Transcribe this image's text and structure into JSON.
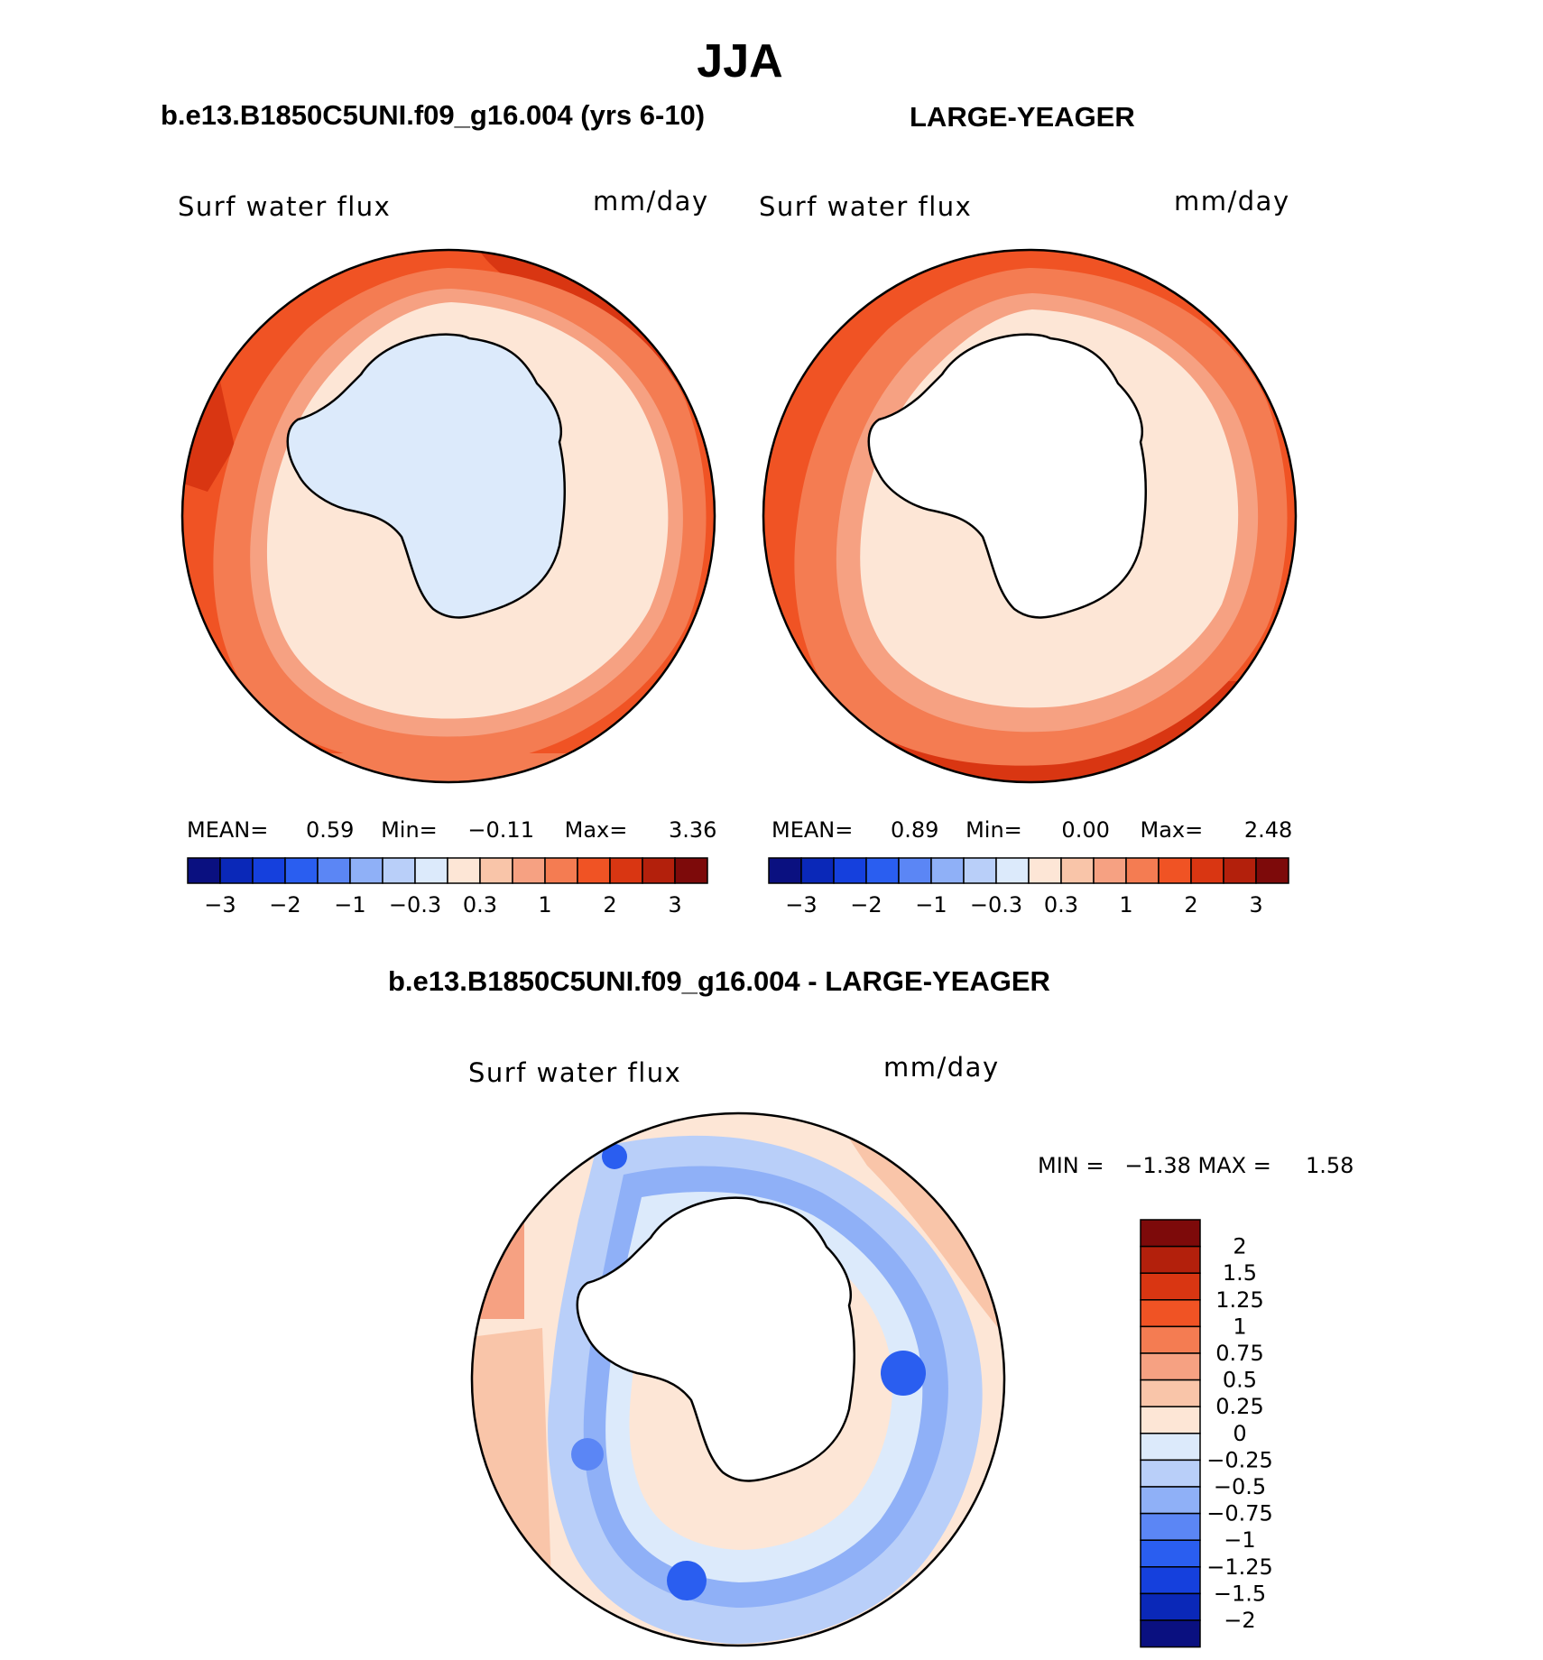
{
  "page_title": "JJA",
  "panels": [
    {
      "id": "case1",
      "header": "b.e13.B1850C5UNI.f09_g16.004 (yrs 6-10)",
      "label": "Surf water flux",
      "units": "mm/day",
      "stats": {
        "mean_label": "MEAN=",
        "mean": "0.59",
        "min_label": "Min=",
        "min": "−0.11",
        "max_label": "Max=",
        "max": "3.36"
      }
    },
    {
      "id": "case2",
      "header": "LARGE-YEAGER",
      "label": "Surf water flux",
      "units": "mm/day",
      "stats": {
        "mean_label": "MEAN=",
        "mean": "0.89",
        "min_label": "Min=",
        "min": "0.00",
        "max_label": "Max=",
        "max": "2.48"
      }
    }
  ],
  "diff_panel": {
    "header": "b.e13.B1850C5UNI.f09_g16.004 - LARGE-YEAGER",
    "label": "Surf water flux",
    "units": "mm/day",
    "minmax_text": "MIN =   −1.38 MAX =     1.58"
  },
  "chart_data": [
    {
      "type": "contour-map",
      "projection": "polar-stereographic (south pole)",
      "title": "b.e13.B1850C5UNI.f09_g16.004 (yrs 6-10)",
      "variable": "Surf water flux",
      "units": "mm/day",
      "mean": 0.59,
      "min": -0.11,
      "max": 3.36,
      "colorbar_ticks": [
        "−3",
        "−2",
        "−1",
        "−0.3",
        "0.3",
        "1",
        "2",
        "3"
      ],
      "colorbar_colors": [
        "#0a1080",
        "#0a28b8",
        "#1540dd",
        "#2a5ef0",
        "#5b86f5",
        "#8fb0f7",
        "#b9cff9",
        "#dceafb",
        "#fde6d6",
        "#f9c5a9",
        "#f6a182",
        "#f47c52",
        "#f05324",
        "#d93612",
        "#b3200c",
        "#7d0a0a"
      ],
      "land_mask_region": "Antarctica"
    },
    {
      "type": "contour-map",
      "projection": "polar-stereographic (south pole)",
      "title": "LARGE-YEAGER",
      "variable": "Surf water flux",
      "units": "mm/day",
      "mean": 0.89,
      "min": 0.0,
      "max": 2.48,
      "colorbar_ticks": [
        "−3",
        "−2",
        "−1",
        "−0.3",
        "0.3",
        "1",
        "2",
        "3"
      ],
      "colorbar_colors": [
        "#0a1080",
        "#0a28b8",
        "#1540dd",
        "#2a5ef0",
        "#5b86f5",
        "#8fb0f7",
        "#b9cff9",
        "#dceafb",
        "#fde6d6",
        "#f9c5a9",
        "#f6a182",
        "#f47c52",
        "#f05324",
        "#d93612",
        "#b3200c",
        "#7d0a0a"
      ],
      "land_mask_region": "Antarctica"
    },
    {
      "type": "contour-map",
      "projection": "polar-stereographic (south pole)",
      "title": "b.e13.B1850C5UNI.f09_g16.004 - LARGE-YEAGER",
      "variable": "Surf water flux",
      "units": "mm/day",
      "min": -1.38,
      "max": 1.58,
      "colorbar_ticks": [
        "2",
        "1.5",
        "1.25",
        "1",
        "0.75",
        "0.5",
        "0.25",
        "0",
        "−0.25",
        "−0.5",
        "−0.75",
        "−1",
        "−1.25",
        "−1.5",
        "−2"
      ],
      "colorbar_colors": [
        "#7d0a0a",
        "#b3200c",
        "#d93612",
        "#f05324",
        "#f47c52",
        "#f6a182",
        "#f9c5a9",
        "#fde6d6",
        "#dceafb",
        "#b9cff9",
        "#8fb0f7",
        "#5b86f5",
        "#2a5ef0",
        "#1540dd",
        "#0a28b8",
        "#0a1080"
      ],
      "land_mask_region": "Antarctica"
    }
  ]
}
